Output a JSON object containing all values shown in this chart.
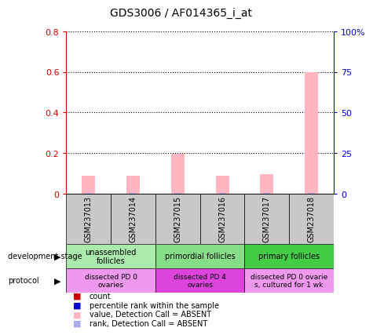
{
  "title": "GDS3006 / AF014365_i_at",
  "samples": [
    "GSM237013",
    "GSM237014",
    "GSM237015",
    "GSM237016",
    "GSM237017",
    "GSM237018"
  ],
  "pink_values": [
    0.09,
    0.09,
    0.195,
    0.09,
    0.095,
    0.6
  ],
  "blue_values": [
    0.004,
    0.004,
    0.004,
    0.004,
    0.004,
    0.004
  ],
  "ylim_left": [
    0,
    0.8
  ],
  "ylim_right": [
    0,
    100
  ],
  "yticks_left": [
    0,
    0.2,
    0.4,
    0.6,
    0.8
  ],
  "yticks_right": [
    0,
    25,
    50,
    75,
    100
  ],
  "ytick_labels_left": [
    "0",
    "0.2",
    "0.4",
    "0.6",
    "0.8"
  ],
  "ytick_labels_right": [
    "0",
    "25",
    "50",
    "75",
    "100%"
  ],
  "development_stage_groups": [
    {
      "label": "unassembled\nfollicles",
      "start": 0,
      "end": 2,
      "color": "#AAEAAA"
    },
    {
      "label": "primordial follicles",
      "start": 2,
      "end": 4,
      "color": "#88DD88"
    },
    {
      "label": "primary follicles",
      "start": 4,
      "end": 6,
      "color": "#44CC44"
    }
  ],
  "protocol_groups": [
    {
      "label": "dissected PD 0\novaries",
      "start": 0,
      "end": 2,
      "color": "#EE99EE"
    },
    {
      "label": "dissected PD 4\novaries",
      "start": 2,
      "end": 4,
      "color": "#DD44DD"
    },
    {
      "label": "dissected PD 0 ovarie\ns, cultured for 1 wk",
      "start": 4,
      "end": 6,
      "color": "#EE99EE"
    }
  ],
  "legend_items": [
    {
      "label": "count",
      "color": "#CC0000"
    },
    {
      "label": "percentile rank within the sample",
      "color": "#0000CC"
    },
    {
      "label": "value, Detection Call = ABSENT",
      "color": "#FFB6C1"
    },
    {
      "label": "rank, Detection Call = ABSENT",
      "color": "#AAAAEE"
    }
  ],
  "bar_width": 0.3,
  "pink_color": "#FFB6C1",
  "blue_color": "#AAAAEE",
  "left_axis_color": "#CC0000",
  "right_axis_color": "#0000CC"
}
